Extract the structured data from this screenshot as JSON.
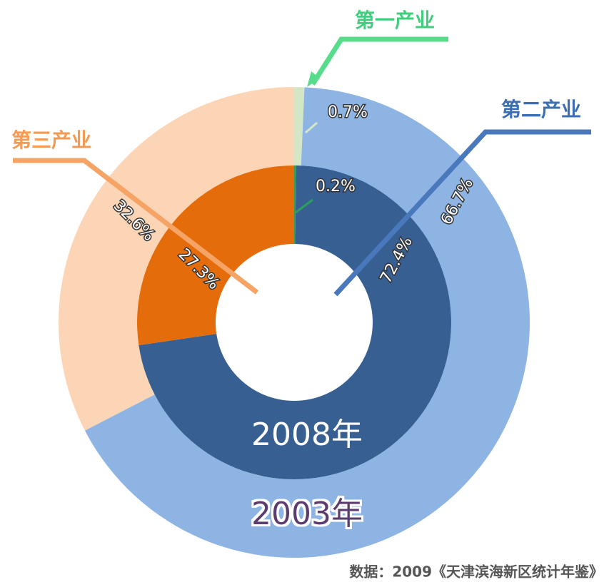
{
  "chart_data": {
    "type": "pie",
    "categories": [
      "第一产业",
      "第二产业",
      "第三产业"
    ],
    "category_colors": [
      "#3fcf7c",
      "#3b6eb4",
      "#f59a52"
    ],
    "series": [
      {
        "name": "2003年",
        "values": [
          0.7,
          66.7,
          32.6
        ],
        "value_labels": [
          "0.7%",
          "66.7%",
          "32.6%"
        ],
        "colors": [
          "#d3e6c6",
          "#8eb4e3",
          "#fbd5b5"
        ]
      },
      {
        "name": "2008年",
        "values": [
          0.2,
          72.4,
          27.3
        ],
        "value_labels": [
          "0.2%",
          "72.4%",
          "27.3%"
        ],
        "colors": [
          "#2ca05a",
          "#375f92",
          "#e46c0a"
        ]
      }
    ],
    "source": "数据：2009《天津滨海新区统计年鉴》"
  }
}
